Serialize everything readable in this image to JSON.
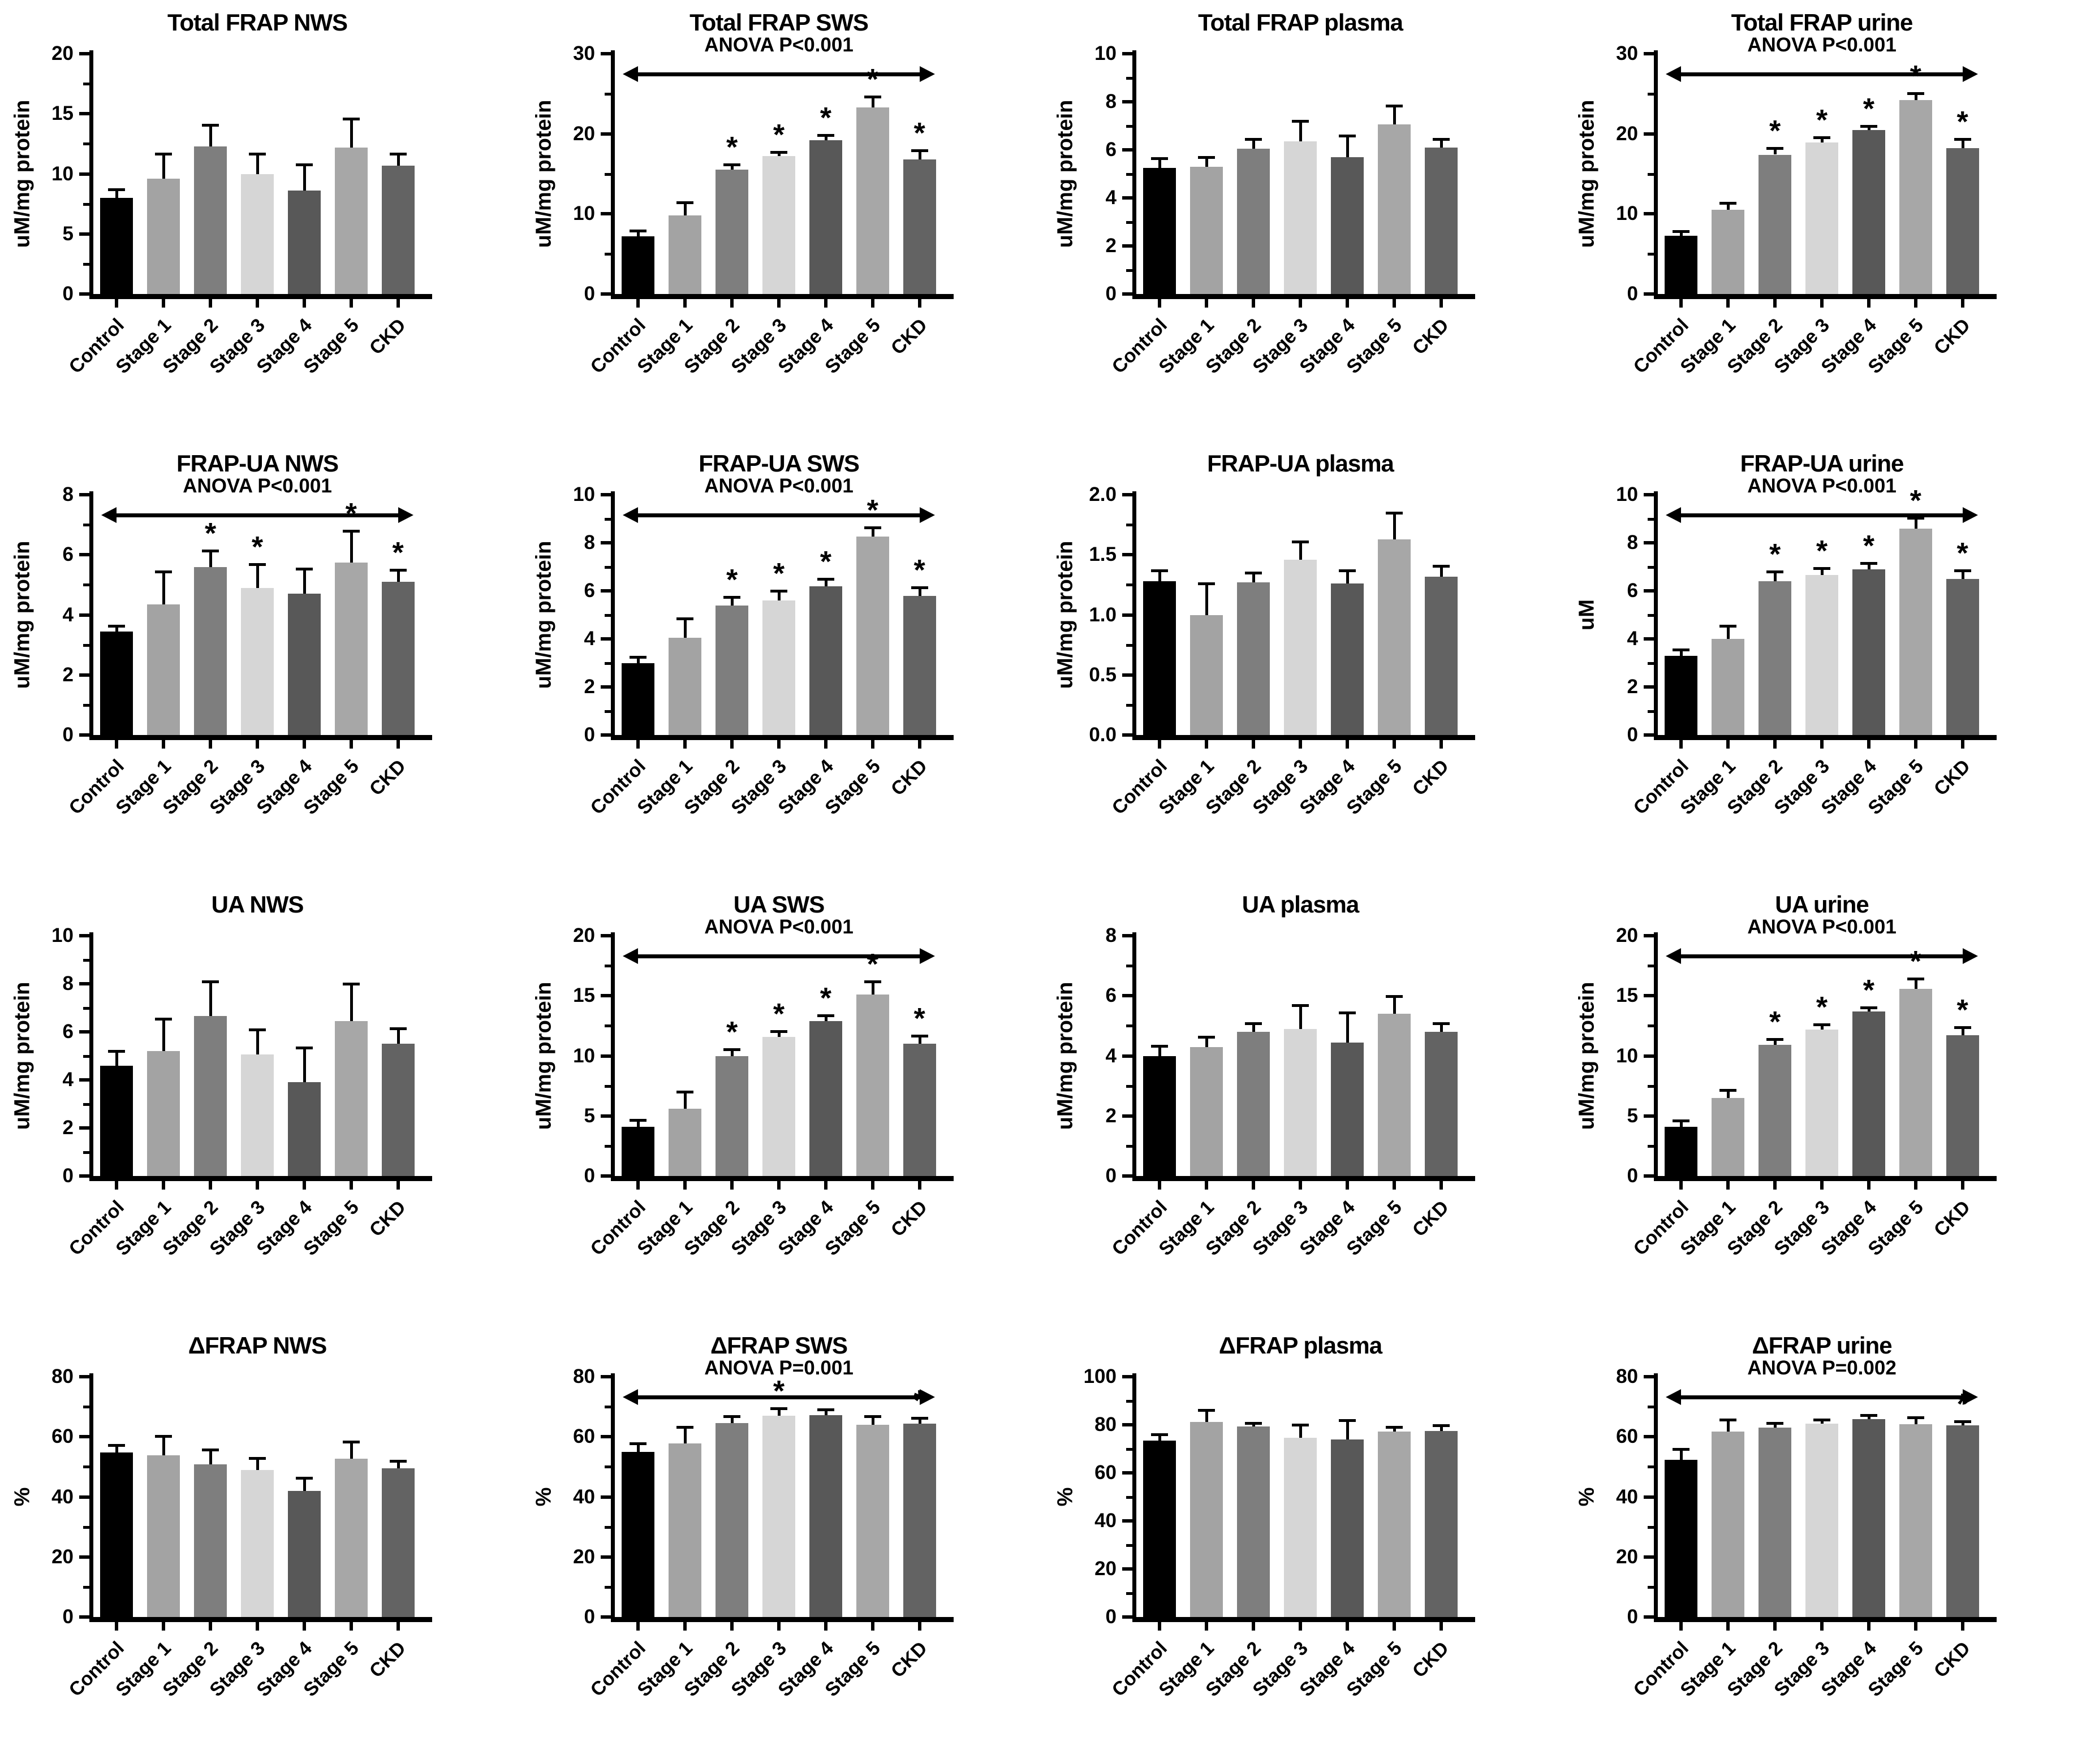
{
  "figure": {
    "description": "4x4 grid of GraphPad-style bar charts comparing antioxidant capacity (FRAP, FRAP-UA, UA, dFRAP) in NWS, SWS, plasma and urine across CKD stages",
    "group_labels": [
      "Control",
      "Stage 1",
      "Stage 2",
      "Stage 3",
      "Stage 4",
      "Stage 5",
      "CKD"
    ],
    "bar_colors": [
      "#000000",
      "#a3a3a3",
      "#7e7e7e",
      "#d6d6d6",
      "#585858",
      "#a7a7a7",
      "#636363"
    ],
    "axis_color": "#000000",
    "significance_marker": "*"
  },
  "chart_data": [
    {
      "type": "bar",
      "title": "Total FRAP NWS",
      "ylabel": "uM/mg protein",
      "xlabel": "",
      "ylim": [
        0,
        20
      ],
      "yticks": [
        0,
        5,
        10,
        15,
        20
      ],
      "ytick_labels": [
        "0",
        "5",
        "10",
        "15",
        "20"
      ],
      "anova": null,
      "grid": false,
      "legend": false,
      "categories": [
        "Control",
        "Stage 1",
        "Stage 2",
        "Stage 3",
        "Stage 4",
        "Stage 5",
        "CKD"
      ],
      "values": [
        8.0,
        9.6,
        12.3,
        10.0,
        8.6,
        12.2,
        10.7
      ],
      "errors": [
        0.6,
        2.0,
        1.7,
        1.6,
        2.1,
        2.3,
        0.9
      ],
      "sig": [
        false,
        false,
        false,
        false,
        false,
        false,
        false
      ]
    },
    {
      "type": "bar",
      "title": "Total FRAP SWS",
      "ylabel": "uM/mg protein",
      "xlabel": "",
      "ylim": [
        0,
        30
      ],
      "yticks": [
        0,
        10,
        20,
        30
      ],
      "ytick_labels": [
        "0",
        "10",
        "20",
        "30"
      ],
      "anova": "ANOVA P<0.001",
      "grid": false,
      "legend": false,
      "categories": [
        "Control",
        "Stage 1",
        "Stage 2",
        "Stage 3",
        "Stage 4",
        "Stage 5",
        "CKD"
      ],
      "values": [
        7.2,
        9.8,
        15.5,
        17.2,
        19.2,
        23.3,
        16.8
      ],
      "errors": [
        0.6,
        1.5,
        0.5,
        0.4,
        0.5,
        1.2,
        1.0
      ],
      "sig": [
        false,
        false,
        true,
        true,
        true,
        true,
        true
      ]
    },
    {
      "type": "bar",
      "title": "Total FRAP plasma",
      "ylabel": "uM/mg protein",
      "xlabel": "",
      "ylim": [
        0,
        10
      ],
      "yticks": [
        0,
        2,
        4,
        6,
        8,
        10
      ],
      "ytick_labels": [
        "0",
        "2",
        "4",
        "6",
        "8",
        "10"
      ],
      "anova": null,
      "grid": false,
      "legend": false,
      "categories": [
        "Control",
        "Stage 1",
        "Stage 2",
        "Stage 3",
        "Stage 4",
        "Stage 5",
        "CKD"
      ],
      "values": [
        5.25,
        5.3,
        6.05,
        6.35,
        5.7,
        7.05,
        6.1
      ],
      "errors": [
        0.35,
        0.35,
        0.35,
        0.8,
        0.85,
        0.75,
        0.3
      ],
      "sig": [
        false,
        false,
        false,
        false,
        false,
        false,
        false
      ]
    },
    {
      "type": "bar",
      "title": "Total FRAP urine",
      "ylabel": "uM/mg protein",
      "xlabel": "",
      "ylim": [
        0,
        30
      ],
      "yticks": [
        0,
        10,
        20,
        30
      ],
      "ytick_labels": [
        "0",
        "10",
        "20",
        "30"
      ],
      "anova": "ANOVA P<0.001",
      "grid": false,
      "legend": false,
      "categories": [
        "Control",
        "Stage 1",
        "Stage 2",
        "Stage 3",
        "Stage 4",
        "Stage 5",
        "CKD"
      ],
      "values": [
        7.3,
        10.5,
        17.4,
        18.9,
        20.5,
        24.2,
        18.2
      ],
      "errors": [
        0.4,
        0.7,
        0.7,
        0.5,
        0.3,
        0.7,
        1.0
      ],
      "sig": [
        false,
        false,
        true,
        true,
        true,
        true,
        true
      ]
    },
    {
      "type": "bar",
      "title": "FRAP-UA NWS",
      "ylabel": "uM/mg protein",
      "xlabel": "",
      "ylim": [
        0,
        8
      ],
      "yticks": [
        0,
        2,
        4,
        6,
        8
      ],
      "ytick_labels": [
        "0",
        "2",
        "4",
        "6",
        "8"
      ],
      "anova": "ANOVA P<0.001",
      "grid": false,
      "legend": false,
      "categories": [
        "Control",
        "Stage 1",
        "Stage 2",
        "Stage 3",
        "Stage 4",
        "Stage 5",
        "CKD"
      ],
      "values": [
        3.45,
        4.35,
        5.6,
        4.9,
        4.7,
        5.75,
        5.1
      ],
      "errors": [
        0.15,
        1.05,
        0.5,
        0.75,
        0.8,
        1.0,
        0.35
      ],
      "sig": [
        false,
        false,
        true,
        true,
        false,
        true,
        true
      ]
    },
    {
      "type": "bar",
      "title": "FRAP-UA SWS",
      "ylabel": "uM/mg protein",
      "xlabel": "",
      "ylim": [
        0,
        10
      ],
      "yticks": [
        0,
        2,
        4,
        6,
        8,
        10
      ],
      "ytick_labels": [
        "0",
        "2",
        "4",
        "6",
        "8",
        "10"
      ],
      "anova": "ANOVA P<0.001",
      "grid": false,
      "legend": false,
      "categories": [
        "Control",
        "Stage 1",
        "Stage 2",
        "Stage 3",
        "Stage 4",
        "Stage 5",
        "CKD"
      ],
      "values": [
        3.0,
        4.05,
        5.4,
        5.6,
        6.2,
        8.25,
        5.8
      ],
      "errors": [
        0.2,
        0.75,
        0.3,
        0.35,
        0.25,
        0.35,
        0.3
      ],
      "sig": [
        false,
        false,
        true,
        true,
        true,
        true,
        true
      ]
    },
    {
      "type": "bar",
      "title": "FRAP-UA plasma",
      "ylabel": "uM/mg protein",
      "xlabel": "",
      "ylim": [
        0,
        2
      ],
      "yticks": [
        0,
        0.5,
        1,
        1.5,
        2
      ],
      "ytick_labels": [
        "0.0",
        "0.5",
        "1.0",
        "1.5",
        "2.0"
      ],
      "anova": null,
      "grid": false,
      "legend": false,
      "categories": [
        "Control",
        "Stage 1",
        "Stage 2",
        "Stage 3",
        "Stage 4",
        "Stage 5",
        "CKD"
      ],
      "values": [
        1.28,
        1.0,
        1.27,
        1.46,
        1.26,
        1.63,
        1.32
      ],
      "errors": [
        0.08,
        0.25,
        0.07,
        0.14,
        0.1,
        0.21,
        0.08
      ],
      "sig": [
        false,
        false,
        false,
        false,
        false,
        false,
        false
      ]
    },
    {
      "type": "bar",
      "title": "FRAP-UA urine",
      "ylabel": "uM",
      "xlabel": "",
      "ylim": [
        0,
        10
      ],
      "yticks": [
        0,
        2,
        4,
        6,
        8,
        10
      ],
      "ytick_labels": [
        "0",
        "2",
        "4",
        "6",
        "8",
        "10"
      ],
      "anova": "ANOVA P<0.001",
      "grid": false,
      "legend": false,
      "categories": [
        "Control",
        "Stage 1",
        "Stage 2",
        "Stage 3",
        "Stage 4",
        "Stage 5",
        "CKD"
      ],
      "values": [
        3.3,
        4.0,
        6.4,
        6.65,
        6.9,
        8.6,
        6.5
      ],
      "errors": [
        0.2,
        0.5,
        0.35,
        0.25,
        0.2,
        0.4,
        0.3
      ],
      "sig": [
        false,
        false,
        true,
        true,
        true,
        true,
        true
      ]
    },
    {
      "type": "bar",
      "title": "UA NWS",
      "ylabel": "uM/mg protein",
      "xlabel": "",
      "ylim": [
        0,
        10
      ],
      "yticks": [
        0,
        2,
        4,
        6,
        8,
        10
      ],
      "ytick_labels": [
        "0",
        "2",
        "4",
        "6",
        "8",
        "10"
      ],
      "anova": null,
      "grid": false,
      "legend": false,
      "categories": [
        "Control",
        "Stage 1",
        "Stage 2",
        "Stage 3",
        "Stage 4",
        "Stage 5",
        "CKD"
      ],
      "values": [
        4.6,
        5.2,
        6.65,
        5.05,
        3.9,
        6.45,
        5.5
      ],
      "errors": [
        0.55,
        1.3,
        1.4,
        1.0,
        1.4,
        1.5,
        0.6
      ],
      "sig": [
        false,
        false,
        false,
        false,
        false,
        false,
        false
      ]
    },
    {
      "type": "bar",
      "title": "UA SWS",
      "ylabel": "uM/mg protein",
      "xlabel": "",
      "ylim": [
        0,
        20
      ],
      "yticks": [
        0,
        5,
        10,
        15,
        20
      ],
      "ytick_labels": [
        "0",
        "5",
        "10",
        "15",
        "20"
      ],
      "anova": "ANOVA P<0.001",
      "grid": false,
      "legend": false,
      "categories": [
        "Control",
        "Stage 1",
        "Stage 2",
        "Stage 3",
        "Stage 4",
        "Stage 5",
        "CKD"
      ],
      "values": [
        4.1,
        5.6,
        10.0,
        11.6,
        12.9,
        15.1,
        11.0
      ],
      "errors": [
        0.45,
        1.3,
        0.45,
        0.35,
        0.35,
        1.0,
        0.6
      ],
      "sig": [
        false,
        false,
        true,
        true,
        true,
        true,
        true
      ]
    },
    {
      "type": "bar",
      "title": "UA plasma",
      "ylabel": "uM/mg protein",
      "xlabel": "",
      "ylim": [
        0,
        8
      ],
      "yticks": [
        0,
        2,
        4,
        6,
        8
      ],
      "ytick_labels": [
        "0",
        "2",
        "4",
        "6",
        "8"
      ],
      "anova": null,
      "grid": false,
      "legend": false,
      "categories": [
        "Control",
        "Stage 1",
        "Stage 2",
        "Stage 3",
        "Stage 4",
        "Stage 5",
        "CKD"
      ],
      "values": [
        4.0,
        4.3,
        4.8,
        4.9,
        4.45,
        5.4,
        4.8
      ],
      "errors": [
        0.3,
        0.3,
        0.25,
        0.75,
        0.95,
        0.55,
        0.25
      ],
      "sig": [
        false,
        false,
        false,
        false,
        false,
        false,
        false
      ]
    },
    {
      "type": "bar",
      "title": "UA urine",
      "ylabel": "uM/mg protein",
      "xlabel": "",
      "ylim": [
        0,
        20
      ],
      "yticks": [
        0,
        5,
        10,
        15,
        20
      ],
      "ytick_labels": [
        "0",
        "5",
        "10",
        "15",
        "20"
      ],
      "anova": "ANOVA P<0.001",
      "grid": false,
      "legend": false,
      "categories": [
        "Control",
        "Stage 1",
        "Stage 2",
        "Stage 3",
        "Stage 4",
        "Stage 5",
        "CKD"
      ],
      "values": [
        4.1,
        6.5,
        10.9,
        12.2,
        13.7,
        15.6,
        11.7
      ],
      "errors": [
        0.4,
        0.55,
        0.4,
        0.3,
        0.25,
        0.75,
        0.6
      ],
      "sig": [
        false,
        false,
        true,
        true,
        true,
        true,
        true
      ]
    },
    {
      "type": "bar",
      "title": "ΔFRAP NWS",
      "ylabel": "%",
      "xlabel": "",
      "ylim": [
        0,
        80
      ],
      "yticks": [
        0,
        20,
        40,
        60,
        80
      ],
      "ytick_labels": [
        "0",
        "20",
        "40",
        "60",
        "80"
      ],
      "anova": null,
      "grid": false,
      "legend": false,
      "categories": [
        "Control",
        "Stage 1",
        "Stage 2",
        "Stage 3",
        "Stage 4",
        "Stage 5",
        "CKD"
      ],
      "values": [
        54.8,
        53.8,
        50.8,
        49.0,
        42.0,
        52.8,
        49.5
      ],
      "errors": [
        2.0,
        6.0,
        4.5,
        3.5,
        4.0,
        5.2,
        2.0
      ],
      "sig": [
        false,
        false,
        false,
        false,
        false,
        false,
        false
      ]
    },
    {
      "type": "bar",
      "title": "ΔFRAP SWS",
      "ylabel": "%",
      "xlabel": "",
      "ylim": [
        0,
        80
      ],
      "yticks": [
        0,
        20,
        40,
        60,
        80
      ],
      "ytick_labels": [
        "0",
        "20",
        "40",
        "60",
        "80"
      ],
      "anova": "ANOVA P=0.001",
      "grid": false,
      "legend": false,
      "categories": [
        "Control",
        "Stage 1",
        "Stage 2",
        "Stage 3",
        "Stage 4",
        "Stage 5",
        "CKD"
      ],
      "values": [
        55.0,
        57.8,
        64.5,
        67.0,
        67.2,
        64.0,
        64.3
      ],
      "errors": [
        2.5,
        5.0,
        2.0,
        2.0,
        1.5,
        2.5,
        1.5
      ],
      "sig": [
        false,
        false,
        false,
        true,
        false,
        false,
        true
      ]
    },
    {
      "type": "bar",
      "title": "ΔFRAP plasma",
      "ylabel": "%",
      "xlabel": "",
      "ylim": [
        0,
        100
      ],
      "yticks": [
        0,
        20,
        40,
        60,
        80,
        100
      ],
      "ytick_labels": [
        "0",
        "20",
        "40",
        "60",
        "80",
        "100"
      ],
      "anova": null,
      "grid": false,
      "legend": false,
      "categories": [
        "Control",
        "Stage 1",
        "Stage 2",
        "Stage 3",
        "Stage 4",
        "Stage 5",
        "CKD"
      ],
      "values": [
        73.5,
        81.2,
        79.2,
        74.5,
        74.0,
        77.2,
        77.3
      ],
      "errors": [
        2.0,
        4.5,
        1.0,
        5.0,
        7.5,
        1.5,
        2.0
      ],
      "sig": [
        false,
        false,
        false,
        false,
        false,
        false,
        false
      ]
    },
    {
      "type": "bar",
      "title": "ΔFRAP urine",
      "ylabel": "%",
      "xlabel": "",
      "ylim": [
        0,
        80
      ],
      "yticks": [
        0,
        20,
        40,
        60,
        80
      ],
      "ytick_labels": [
        "0",
        "20",
        "40",
        "60",
        "80"
      ],
      "anova": "ANOVA P=0.002",
      "grid": false,
      "legend": false,
      "categories": [
        "Control",
        "Stage 1",
        "Stage 2",
        "Stage 3",
        "Stage 4",
        "Stage 5",
        "CKD"
      ],
      "values": [
        52.3,
        61.8,
        63.0,
        64.3,
        65.8,
        64.2,
        63.8
      ],
      "errors": [
        3.2,
        3.5,
        1.2,
        1.0,
        1.0,
        1.8,
        1.0
      ],
      "sig": [
        false,
        false,
        false,
        false,
        false,
        false,
        true
      ]
    }
  ]
}
